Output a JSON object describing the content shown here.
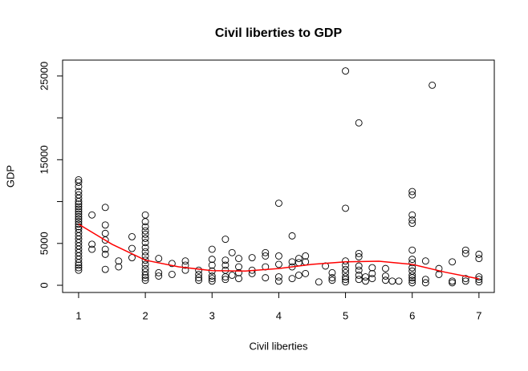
{
  "chart_data": {
    "type": "scatter",
    "title": "Civil liberties to GDP",
    "xlabel": "Civil liberties",
    "ylabel": "GDP",
    "xlim": [
      0.76,
      7.23
    ],
    "ylim": [
      -860,
      26900
    ],
    "xticks": [
      1,
      2,
      3,
      4,
      5,
      6,
      7
    ],
    "yticks": [
      0,
      5000,
      10000,
      15000,
      20000,
      25000
    ],
    "point_color": "#000000",
    "points": {
      "x": [
        1,
        1,
        1,
        1,
        1,
        1,
        1,
        1,
        1,
        1,
        1,
        1,
        1,
        1,
        1,
        1,
        1,
        1,
        1,
        1,
        1,
        1,
        1,
        1,
        1,
        1,
        1,
        1,
        1,
        1,
        1,
        1.2,
        1.2,
        1.2,
        1.4,
        1.4,
        1.4,
        1.4,
        1.4,
        1.4,
        1.4,
        1.6,
        1.6,
        1.8,
        1.8,
        1.8,
        2,
        2,
        2,
        2,
        2,
        2,
        2,
        2,
        2,
        2,
        2,
        2,
        2,
        2,
        2,
        2,
        2,
        2.2,
        2.2,
        2.2,
        2.4,
        2.4,
        2.6,
        2.6,
        2.6,
        2.8,
        2.8,
        2.8,
        2.8,
        3,
        3,
        3,
        3,
        3,
        3,
        3,
        3.2,
        3.2,
        3.2,
        3.2,
        3.2,
        3.2,
        3.3,
        3.3,
        3.4,
        3.4,
        3.4,
        3.4,
        3.6,
        3.6,
        3.6,
        3.8,
        3.8,
        3.8,
        3.8,
        4,
        4,
        4,
        4,
        4,
        4.2,
        4.2,
        4.2,
        4.2,
        4.3,
        4.3,
        4.3,
        4.4,
        4.4,
        4.4,
        4.6,
        4.7,
        4.8,
        4.8,
        4.8,
        5,
        5,
        5,
        5,
        5,
        5,
        5,
        5,
        5,
        5.2,
        5.2,
        5.2,
        5.2,
        5.2,
        5.2,
        5.2,
        5.3,
        5.3,
        5.4,
        5.4,
        5.4,
        5.6,
        5.6,
        5.6,
        5.7,
        5.8,
        6,
        6,
        6,
        6,
        6,
        6,
        6,
        6,
        6,
        6,
        6,
        6,
        6,
        6,
        6.2,
        6.2,
        6.2,
        6.3,
        6.4,
        6.4,
        6.6,
        6.6,
        6.6,
        6.8,
        6.8,
        6.8,
        6.8,
        7,
        7,
        7,
        7,
        7
      ],
      "y": [
        12600,
        12300,
        11800,
        11200,
        10800,
        10400,
        10000,
        9700,
        9400,
        9100,
        8800,
        8500,
        8200,
        7900,
        7600,
        7300,
        7000,
        6700,
        6300,
        5900,
        5500,
        5100,
        4700,
        4300,
        3900,
        3500,
        3100,
        2700,
        2400,
        2100,
        1800,
        8400,
        4900,
        4300,
        9300,
        7200,
        6200,
        5400,
        4300,
        3700,
        1900,
        2900,
        2200,
        5800,
        4400,
        3300,
        8400,
        7600,
        7000,
        6500,
        6100,
        5600,
        5100,
        4500,
        4000,
        3500,
        3000,
        2500,
        2000,
        1600,
        1200,
        900,
        600,
        3200,
        1500,
        1100,
        2600,
        1300,
        2900,
        2400,
        1800,
        1800,
        1300,
        900,
        600,
        4300,
        3100,
        2400,
        1700,
        1100,
        800,
        500,
        5500,
        3000,
        2400,
        1800,
        1000,
        700,
        3900,
        1200,
        3200,
        2200,
        1500,
        800,
        3300,
        1800,
        1400,
        3900,
        3500,
        2200,
        900,
        9800,
        3500,
        2500,
        1000,
        500,
        5900,
        2800,
        2200,
        800,
        3200,
        2700,
        1200,
        3500,
        2800,
        1400,
        400,
        2300,
        1500,
        900,
        600,
        25600,
        9200,
        2900,
        2400,
        1900,
        1500,
        1000,
        700,
        400,
        19400,
        3800,
        3400,
        2300,
        1800,
        1200,
        700,
        1000,
        500,
        2100,
        1400,
        800,
        2000,
        1100,
        600,
        500,
        500,
        11200,
        10800,
        8400,
        7800,
        7400,
        4200,
        3100,
        2700,
        2100,
        1700,
        1200,
        900,
        600,
        300,
        2900,
        700,
        300,
        23900,
        2000,
        1300,
        2800,
        500,
        300,
        4200,
        3800,
        800,
        500,
        3700,
        3200,
        1000,
        700,
        400
      ]
    },
    "line": {
      "color": "#ff0000",
      "x": [
        1,
        1.5,
        2,
        2.5,
        3,
        3.5,
        4,
        4.5,
        5,
        5.5,
        6,
        6.5,
        7
      ],
      "y": [
        7300,
        4900,
        3000,
        2200,
        1750,
        1700,
        2000,
        2500,
        2800,
        2870,
        2500,
        1550,
        770
      ]
    }
  }
}
